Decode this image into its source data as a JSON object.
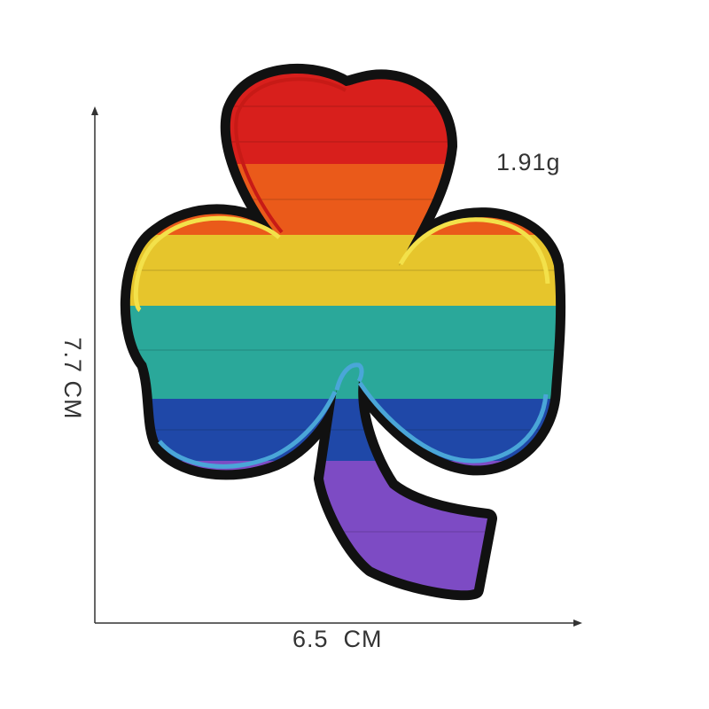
{
  "image": {
    "subject": "rainbow-shamrock-embroidered-patch"
  },
  "labels": {
    "weight": "1.91g",
    "width": "6.5  CM",
    "height": "7.7 CM"
  },
  "colors": {
    "border": "#111111",
    "red": "#d81f1c",
    "orange": "#ea5a1a",
    "yellow": "#e6c52c",
    "teal": "#2aa89a",
    "blue": "#1f48a8",
    "purple": "#7d4bc4",
    "outline_light_blue": "#4aa6d8",
    "outline_yellow": "#f3e14a"
  }
}
